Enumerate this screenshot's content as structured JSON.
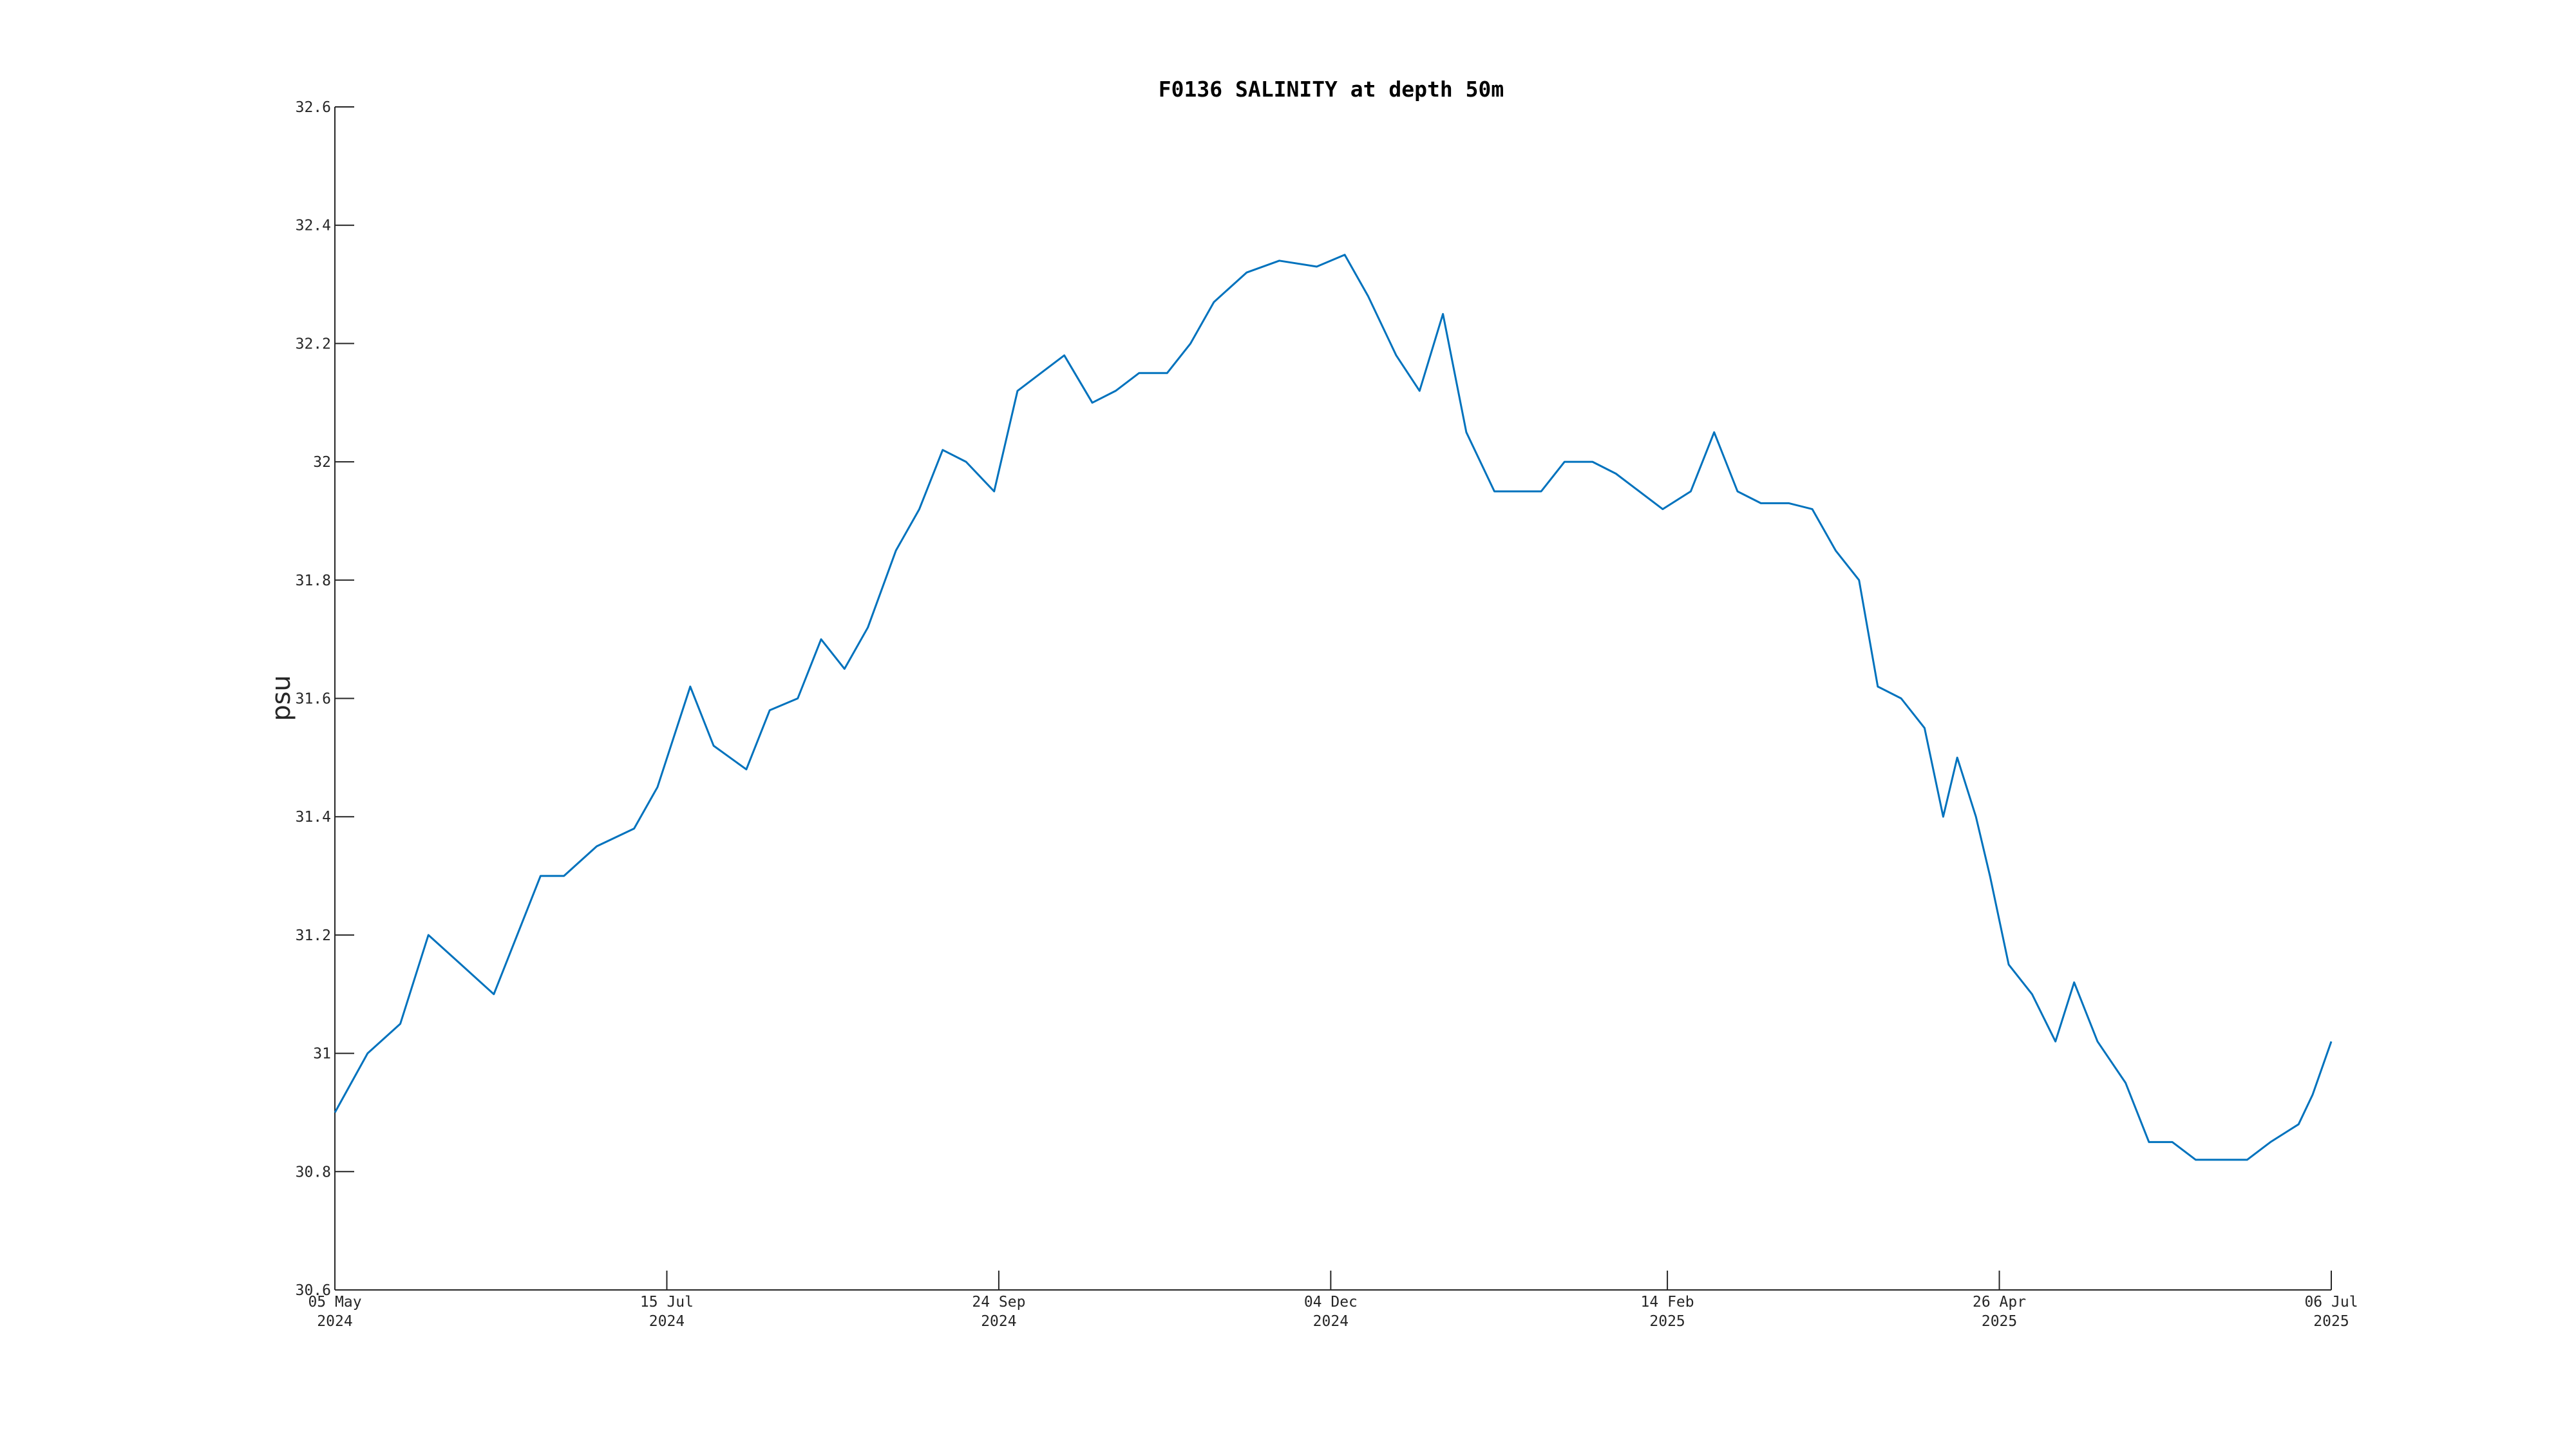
{
  "chart_data": {
    "type": "line",
    "title": "F0136 SALINITY at depth 50m",
    "ylabel": "psu",
    "x": [
      "2024-05-05",
      "2024-05-12",
      "2024-05-19",
      "2024-05-25",
      "2024-06-01",
      "2024-06-08",
      "2024-06-13",
      "2024-06-18",
      "2024-06-23",
      "2024-06-30",
      "2024-07-08",
      "2024-07-13",
      "2024-07-20",
      "2024-07-25",
      "2024-08-01",
      "2024-08-06",
      "2024-08-12",
      "2024-08-17",
      "2024-08-22",
      "2024-08-27",
      "2024-09-02",
      "2024-09-07",
      "2024-09-12",
      "2024-09-17",
      "2024-09-23",
      "2024-09-28",
      "2024-10-03",
      "2024-10-08",
      "2024-10-14",
      "2024-10-19",
      "2024-10-24",
      "2024-10-30",
      "2024-11-04",
      "2024-11-09",
      "2024-11-16",
      "2024-11-23",
      "2024-12-01",
      "2024-12-07",
      "2024-12-12",
      "2024-12-18",
      "2024-12-23",
      "2024-12-28",
      "2025-01-02",
      "2025-01-08",
      "2025-01-13",
      "2025-01-18",
      "2025-01-23",
      "2025-01-29",
      "2025-02-03",
      "2025-02-08",
      "2025-02-13",
      "2025-02-19",
      "2025-02-24",
      "2025-03-01",
      "2025-03-06",
      "2025-03-12",
      "2025-03-17",
      "2025-03-22",
      "2025-03-27",
      "2025-03-31",
      "2025-04-05",
      "2025-04-10",
      "2025-04-14",
      "2025-04-17",
      "2025-04-21",
      "2025-04-24",
      "2025-04-28",
      "2025-05-03",
      "2025-05-08",
      "2025-05-12",
      "2025-05-17",
      "2025-05-23",
      "2025-05-28",
      "2025-06-02",
      "2025-06-07",
      "2025-06-13",
      "2025-06-18",
      "2025-06-23",
      "2025-06-29",
      "2025-07-02",
      "2025-07-06"
    ],
    "series": [
      {
        "name": "salinity",
        "color": "#0072bd",
        "values": [
          30.9,
          31.0,
          31.05,
          31.2,
          31.15,
          31.1,
          31.2,
          31.3,
          31.3,
          31.35,
          31.38,
          31.45,
          31.62,
          31.52,
          31.48,
          31.58,
          31.6,
          31.7,
          31.65,
          31.72,
          31.85,
          31.92,
          32.02,
          32.0,
          31.95,
          32.12,
          32.15,
          32.18,
          32.1,
          32.12,
          32.15,
          32.15,
          32.2,
          32.27,
          32.32,
          32.34,
          32.33,
          32.35,
          32.28,
          32.18,
          32.12,
          32.25,
          32.05,
          31.95,
          31.95,
          31.95,
          32.0,
          32.0,
          31.98,
          31.95,
          31.92,
          31.95,
          32.05,
          31.95,
          31.93,
          31.93,
          31.92,
          31.85,
          31.8,
          31.62,
          31.6,
          31.55,
          31.4,
          31.5,
          31.4,
          31.3,
          31.15,
          31.1,
          31.02,
          31.12,
          31.02,
          30.95,
          30.85,
          30.85,
          30.82,
          30.82,
          30.82,
          30.85,
          30.88,
          30.93,
          31.02
        ]
      }
    ],
    "xlim": [
      "2024-05-05",
      "2025-07-06"
    ],
    "xticks": [
      {
        "value": "2024-05-05",
        "label": "05 May 2024"
      },
      {
        "value": "2024-07-15",
        "label": "15 Jul 2024"
      },
      {
        "value": "2024-09-24",
        "label": "24 Sep 2024"
      },
      {
        "value": "2024-12-04",
        "label": "04 Dec 2024"
      },
      {
        "value": "2025-02-14",
        "label": "14 Feb 2025"
      },
      {
        "value": "2025-04-26",
        "label": "26 Apr 2025"
      },
      {
        "value": "2025-07-06",
        "label": "06 Jul 2025"
      }
    ],
    "ylim": [
      30.6,
      32.6
    ],
    "yticks": [
      30.6,
      30.8,
      31,
      31.2,
      31.4,
      31.6,
      31.8,
      32,
      32.2,
      32.4,
      32.6
    ]
  }
}
